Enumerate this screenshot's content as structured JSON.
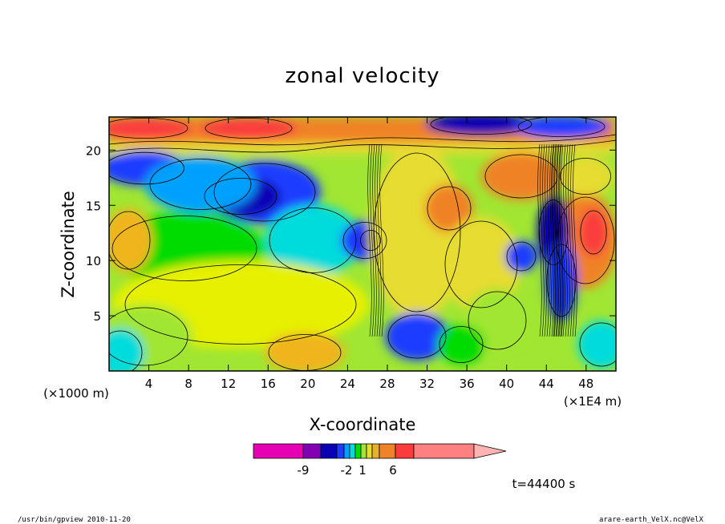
{
  "chart_data": {
    "type": "heatmap",
    "title": "zonal velocity",
    "xlabel": "X-coordinate",
    "ylabel": "Z-coordinate",
    "x_unit_left": "(×1000 m)",
    "x_unit_right": "(×1E4 m)",
    "x_ticks": [
      4,
      8,
      12,
      16,
      20,
      24,
      28,
      32,
      36,
      40,
      44,
      48
    ],
    "y_ticks": [
      5,
      10,
      15,
      20
    ],
    "xlim": [
      0,
      51
    ],
    "ylim": [
      0,
      23
    ],
    "colorbar": {
      "labels": [
        "-9",
        "-2",
        "1",
        "6"
      ],
      "colors": [
        "#e600b4",
        "#8200b4",
        "#0a00b4",
        "#1e3cff",
        "#00a0ff",
        "#00dcdc",
        "#00dc00",
        "#a0e632",
        "#e6dc32",
        "#e6af2d",
        "#f08228",
        "#fa3c3c",
        "#ff8080",
        "#ffb4b4"
      ]
    },
    "time_label": "t=44400 s",
    "grid": false
  },
  "footer": {
    "left": "/usr/bin/gpview   2010-11-20",
    "right": "arare-earth_VelX.nc@VelX"
  }
}
